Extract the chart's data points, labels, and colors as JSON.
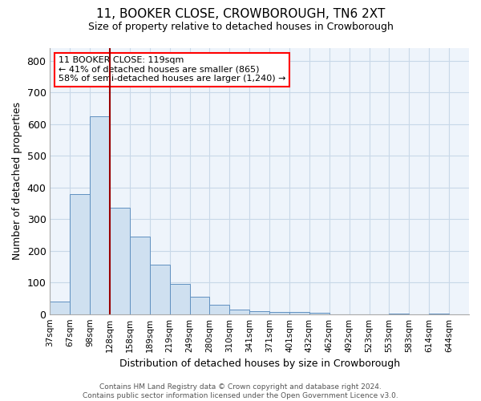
{
  "title": "11, BOOKER CLOSE, CROWBOROUGH, TN6 2XT",
  "subtitle": "Size of property relative to detached houses in Crowborough",
  "xlabel": "Distribution of detached houses by size in Crowborough",
  "ylabel": "Number of detached properties",
  "bar_labels": [
    "37sqm",
    "67sqm",
    "98sqm",
    "128sqm",
    "158sqm",
    "189sqm",
    "219sqm",
    "249sqm",
    "280sqm",
    "310sqm",
    "341sqm",
    "371sqm",
    "401sqm",
    "432sqm",
    "462sqm",
    "492sqm",
    "523sqm",
    "553sqm",
    "583sqm",
    "614sqm",
    "644sqm"
  ],
  "bar_values": [
    40,
    380,
    625,
    335,
    245,
    155,
    95,
    55,
    30,
    15,
    10,
    8,
    6,
    4,
    0,
    0,
    0,
    2,
    0,
    2,
    0
  ],
  "bar_color": "#cfe0f0",
  "bar_edgecolor": "#6090c0",
  "vline_color": "#990000",
  "vline_x": 2.5,
  "annotation_text": "11 BOOKER CLOSE: 119sqm\n← 41% of detached houses are smaller (865)\n58% of semi-detached houses are larger (1,240) →",
  "ylim": [
    0,
    840
  ],
  "yticks": [
    0,
    100,
    200,
    300,
    400,
    500,
    600,
    700,
    800
  ],
  "grid_color": "#c8d8e8",
  "background_color": "#ffffff",
  "plot_bg_color": "#eef4fb",
  "footer_line1": "Contains HM Land Registry data © Crown copyright and database right 2024.",
  "footer_line2": "Contains public sector information licensed under the Open Government Licence v3.0."
}
